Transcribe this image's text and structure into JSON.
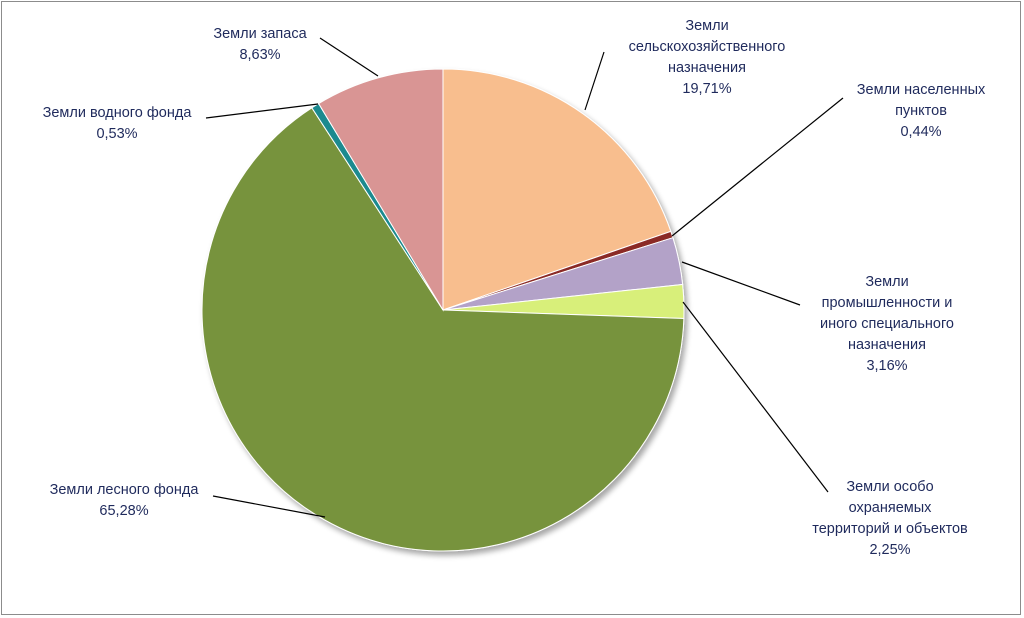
{
  "chart_data": {
    "type": "pie",
    "title": "",
    "slices": [
      {
        "label_lines": [
          "Земли",
          "сельскохозяйственного",
          "назначения"
        ],
        "value": 19.71,
        "value_text": "19,71%",
        "color": "#f8be8e"
      },
      {
        "label_lines": [
          "Земли населенных",
          "пунктов"
        ],
        "value": 0.44,
        "value_text": "0,44%",
        "color": "#8b2b25"
      },
      {
        "label_lines": [
          "Земли",
          "промышленности и",
          "иного специального",
          "назначения"
        ],
        "value": 3.16,
        "value_text": "3,16%",
        "color": "#b3a2c8"
      },
      {
        "label_lines": [
          "Земли особо",
          "охраняемых",
          "территорий и объектов"
        ],
        "value": 2.25,
        "value_text": "2,25%",
        "color": "#d8ef7a"
      },
      {
        "label_lines": [
          "Земли лесного фонда"
        ],
        "value": 65.28,
        "value_text": "65,28%",
        "color": "#77933c"
      },
      {
        "label_lines": [
          "Земли водного фонда"
        ],
        "value": 0.53,
        "value_text": "0,53%",
        "color": "#1d8a8f"
      },
      {
        "label_lines": [
          "Земли запаса"
        ],
        "value": 8.63,
        "value_text": "8,63%",
        "color": "#d99594"
      }
    ],
    "legend": "none",
    "label_color": "#1f2a5c",
    "leader_line_color": "#000000"
  }
}
